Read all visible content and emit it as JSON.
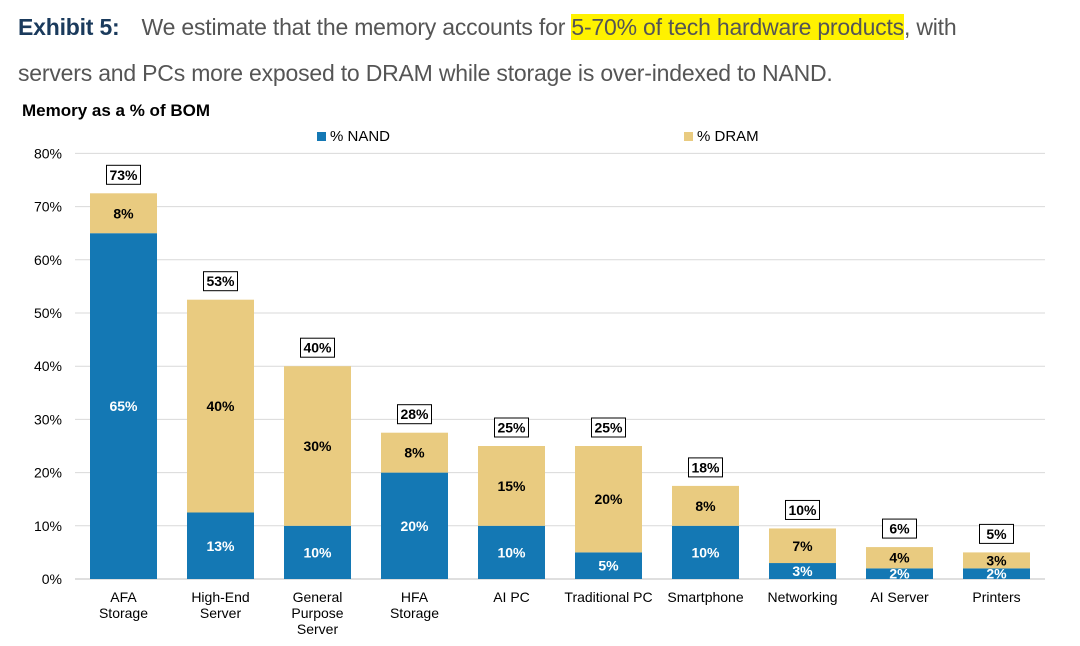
{
  "header": {
    "exhibit_label": "Exhibit 5:",
    "text_before": "We estimate that the memory accounts for ",
    "text_highlight": "5-70% of tech hardware products",
    "text_after": ", with",
    "line2": "servers and PCs more exposed to DRAM while storage is over-indexed to NAND."
  },
  "colors": {
    "nand": "#1478b4",
    "dram": "#e9cb80",
    "grid": "#d9d9d9",
    "highlight": "#fff200"
  },
  "chart_data": {
    "type": "bar",
    "stacked": true,
    "title": "Memory as a % of BOM",
    "xlabel": "",
    "ylabel": "",
    "ylim": [
      0,
      80
    ],
    "yticks": [
      "0%",
      "10%",
      "20%",
      "30%",
      "40%",
      "50%",
      "60%",
      "70%",
      "80%"
    ],
    "grid": true,
    "legend_position": "top",
    "categories": [
      [
        "AFA",
        "Storage"
      ],
      [
        "High-End",
        "Server"
      ],
      [
        "General",
        "Purpose",
        "Server"
      ],
      [
        "HFA",
        "Storage"
      ],
      [
        "AI PC"
      ],
      [
        "Traditional PC"
      ],
      [
        "Smartphone"
      ],
      [
        "Networking"
      ],
      [
        "AI Server"
      ],
      [
        "Printers"
      ]
    ],
    "series": [
      {
        "name": "% NAND",
        "values": [
          65,
          12.5,
          10,
          20,
          10,
          5,
          10,
          3,
          2,
          2
        ],
        "labels": [
          "65%",
          "13%",
          "10%",
          "20%",
          "10%",
          "5%",
          "10%",
          "3%",
          "2%",
          "2%"
        ]
      },
      {
        "name": "% DRAM",
        "values": [
          7.5,
          40,
          30,
          7.5,
          15,
          20,
          7.5,
          6.5,
          4,
          3
        ],
        "labels": [
          "8%",
          "40%",
          "30%",
          "8%",
          "15%",
          "20%",
          "8%",
          "7%",
          "4%",
          "3%"
        ]
      }
    ],
    "totals": [
      "73%",
      "53%",
      "40%",
      "28%",
      "25%",
      "25%",
      "18%",
      "10%",
      "6%",
      "5%"
    ]
  }
}
